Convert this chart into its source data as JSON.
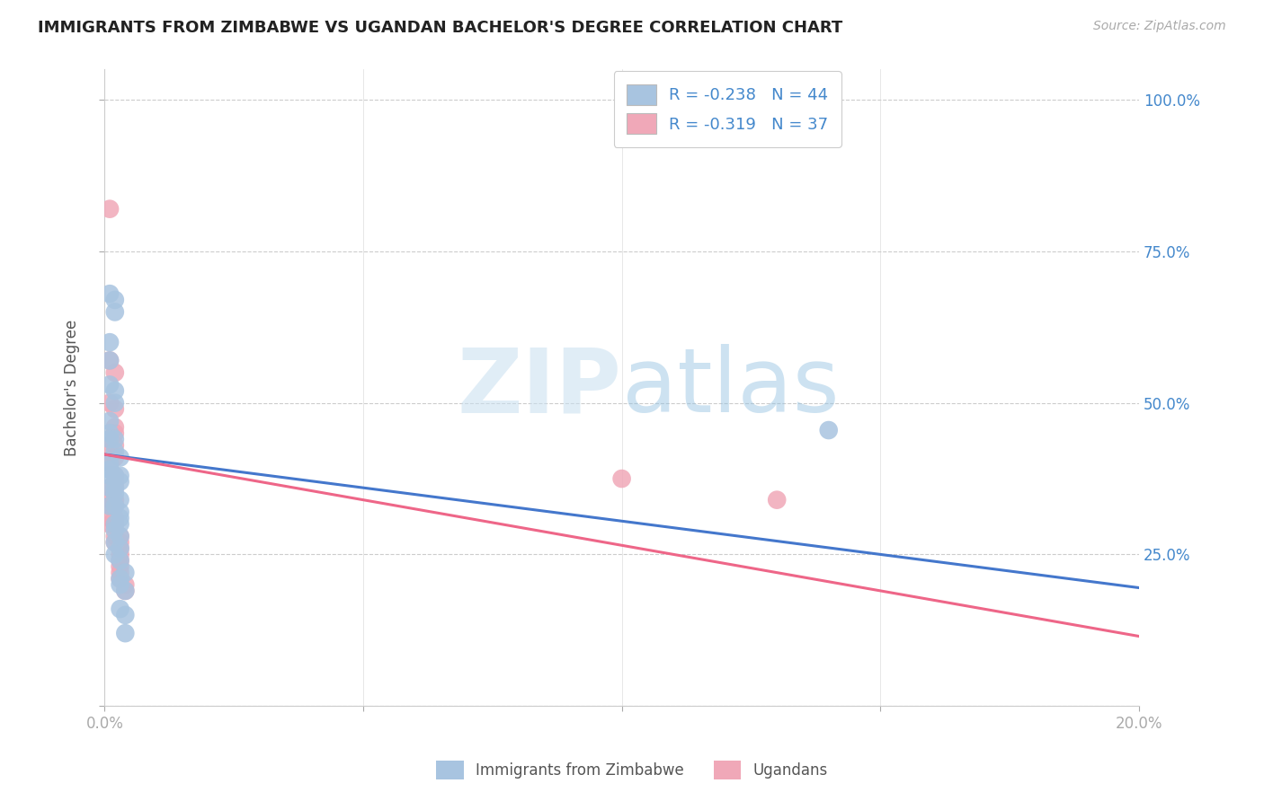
{
  "title": "IMMIGRANTS FROM ZIMBABWE VS UGANDAN BACHELOR'S DEGREE CORRELATION CHART",
  "source": "Source: ZipAtlas.com",
  "ylabel": "Bachelor's Degree",
  "legend_label1": "R = -0.238   N = 44",
  "legend_label2": "R = -0.319   N = 37",
  "legend_footer1": "Immigrants from Zimbabwe",
  "legend_footer2": "Ugandans",
  "blue_color": "#a8c4e0",
  "pink_color": "#f0a8b8",
  "blue_line_color": "#4477cc",
  "pink_line_color": "#ee6688",
  "blue_scatter": [
    [
      0.001,
      0.68
    ],
    [
      0.002,
      0.67
    ],
    [
      0.002,
      0.65
    ],
    [
      0.001,
      0.6
    ],
    [
      0.001,
      0.57
    ],
    [
      0.001,
      0.53
    ],
    [
      0.002,
      0.52
    ],
    [
      0.002,
      0.5
    ],
    [
      0.001,
      0.47
    ],
    [
      0.001,
      0.45
    ],
    [
      0.001,
      0.44
    ],
    [
      0.002,
      0.44
    ],
    [
      0.002,
      0.42
    ],
    [
      0.003,
      0.41
    ],
    [
      0.001,
      0.4
    ],
    [
      0.001,
      0.39
    ],
    [
      0.001,
      0.38
    ],
    [
      0.002,
      0.38
    ],
    [
      0.003,
      0.38
    ],
    [
      0.003,
      0.37
    ],
    [
      0.001,
      0.36
    ],
    [
      0.002,
      0.36
    ],
    [
      0.002,
      0.35
    ],
    [
      0.003,
      0.34
    ],
    [
      0.001,
      0.33
    ],
    [
      0.002,
      0.33
    ],
    [
      0.003,
      0.32
    ],
    [
      0.003,
      0.31
    ],
    [
      0.002,
      0.3
    ],
    [
      0.003,
      0.3
    ],
    [
      0.002,
      0.29
    ],
    [
      0.003,
      0.28
    ],
    [
      0.002,
      0.27
    ],
    [
      0.003,
      0.26
    ],
    [
      0.002,
      0.25
    ],
    [
      0.003,
      0.24
    ],
    [
      0.004,
      0.22
    ],
    [
      0.003,
      0.21
    ],
    [
      0.003,
      0.2
    ],
    [
      0.004,
      0.19
    ],
    [
      0.003,
      0.16
    ],
    [
      0.004,
      0.15
    ],
    [
      0.004,
      0.12
    ],
    [
      0.14,
      0.455
    ]
  ],
  "pink_scatter": [
    [
      0.001,
      0.82
    ],
    [
      0.001,
      0.57
    ],
    [
      0.002,
      0.55
    ],
    [
      0.001,
      0.5
    ],
    [
      0.002,
      0.49
    ],
    [
      0.002,
      0.46
    ],
    [
      0.002,
      0.45
    ],
    [
      0.001,
      0.43
    ],
    [
      0.002,
      0.43
    ],
    [
      0.002,
      0.41
    ],
    [
      0.001,
      0.4
    ],
    [
      0.002,
      0.38
    ],
    [
      0.002,
      0.37
    ],
    [
      0.001,
      0.36
    ],
    [
      0.002,
      0.36
    ],
    [
      0.001,
      0.34
    ],
    [
      0.002,
      0.34
    ],
    [
      0.001,
      0.33
    ],
    [
      0.002,
      0.33
    ],
    [
      0.001,
      0.31
    ],
    [
      0.002,
      0.31
    ],
    [
      0.001,
      0.3
    ],
    [
      0.002,
      0.3
    ],
    [
      0.002,
      0.28
    ],
    [
      0.003,
      0.28
    ],
    [
      0.002,
      0.27
    ],
    [
      0.003,
      0.27
    ],
    [
      0.003,
      0.26
    ],
    [
      0.003,
      0.25
    ],
    [
      0.003,
      0.24
    ],
    [
      0.003,
      0.23
    ],
    [
      0.003,
      0.22
    ],
    [
      0.003,
      0.21
    ],
    [
      0.004,
      0.2
    ],
    [
      0.004,
      0.19
    ],
    [
      0.1,
      0.375
    ],
    [
      0.13,
      0.34
    ]
  ],
  "xlim": [
    0.0,
    0.2
  ],
  "ylim": [
    0.0,
    1.05
  ],
  "blue_R": -0.238,
  "blue_N": 44,
  "pink_R": -0.319,
  "pink_N": 37,
  "watermark_zip": "ZIP",
  "watermark_atlas": "atlas",
  "background_color": "#ffffff",
  "grid_color": "#cccccc"
}
